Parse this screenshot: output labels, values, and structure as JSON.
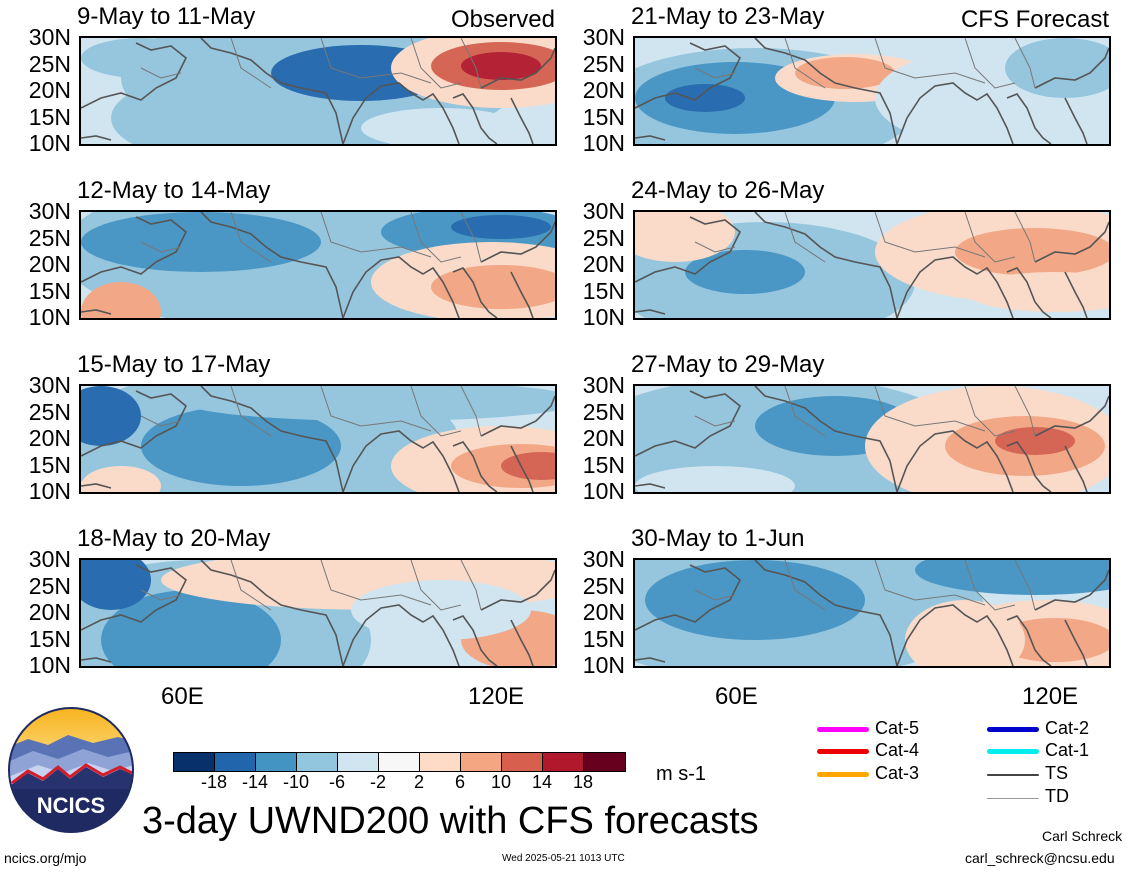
{
  "panels": [
    {
      "title": "9-May to 11-May",
      "label": "Observed"
    },
    {
      "title": "21-May to 23-May",
      "label": "CFS Forecast"
    },
    {
      "title": "12-May to 14-May",
      "label": ""
    },
    {
      "title": "24-May to 26-May",
      "label": ""
    },
    {
      "title": "15-May to 17-May",
      "label": ""
    },
    {
      "title": "27-May to 29-May",
      "label": ""
    },
    {
      "title": "18-May to 20-May",
      "label": ""
    },
    {
      "title": "30-May to 1-Jun",
      "label": ""
    }
  ],
  "lat_labels": [
    "30N",
    "25N",
    "20N",
    "15N",
    "10N"
  ],
  "lon_labels": [
    "60E",
    "120E"
  ],
  "colorbar": {
    "colors": [
      "#08306b",
      "#2166ac",
      "#4393c3",
      "#92c5de",
      "#d1e5f0",
      "#f7f7f7",
      "#fddbc7",
      "#f4a582",
      "#d6604d",
      "#b2182b",
      "#67001f"
    ],
    "ticks": [
      "-18",
      "-14",
      "-10",
      "-6",
      "-2",
      "2",
      "6",
      "10",
      "14",
      "18"
    ],
    "units": "m s-1"
  },
  "legend": [
    {
      "label": "Cat-5",
      "color": "#ff00ff"
    },
    {
      "label": "Cat-4",
      "color": "#ee0000"
    },
    {
      "label": "Cat-3",
      "color": "#ffa500"
    },
    {
      "label": "Cat-2",
      "color": "#0000cc"
    },
    {
      "label": "Cat-1",
      "color": "#00eeee"
    },
    {
      "label": "TS",
      "color": "#444444"
    },
    {
      "label": "TD",
      "color": "#999999"
    }
  ],
  "logo_text": "NCICS",
  "main_title": "3-day UWND200 with CFS forecasts",
  "footer": {
    "url": "ncics.org/mjo",
    "timestamp": "Wed 2025-05-21 1013 UTC",
    "author": "Carl Schreck",
    "email": "carl_schreck@ncsu.edu"
  }
}
